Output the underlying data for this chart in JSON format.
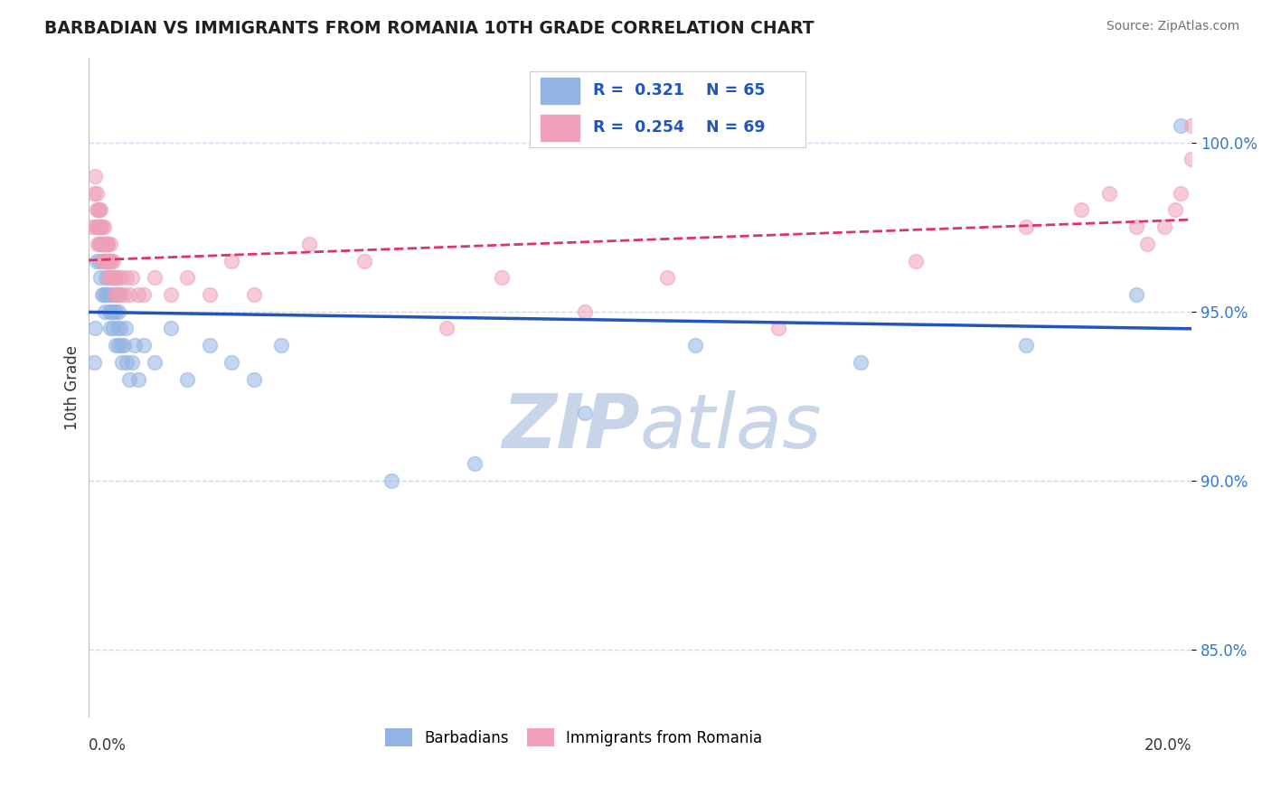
{
  "title": "BARBADIAN VS IMMIGRANTS FROM ROMANIA 10TH GRADE CORRELATION CHART",
  "source_text": "Source: ZipAtlas.com",
  "ylabel": "10th Grade",
  "xmin": 0.0,
  "xmax": 20.0,
  "ymin": 83.0,
  "ymax": 102.5,
  "blue_R": 0.321,
  "blue_N": 65,
  "pink_R": 0.254,
  "pink_N": 69,
  "blue_color": "#92b4e3",
  "pink_color": "#f0a0b8",
  "blue_line_color": "#2255bb",
  "pink_line_color": "#dd3366",
  "legend_text_color": "#2255bb",
  "title_color": "#202020",
  "source_color": "#707070",
  "grid_color": "#ccd8ec",
  "watermark_color": "#c8d4e8",
  "blue_x": [
    0.1,
    0.12,
    0.15,
    0.17,
    0.18,
    0.2,
    0.2,
    0.22,
    0.22,
    0.25,
    0.25,
    0.27,
    0.28,
    0.28,
    0.3,
    0.3,
    0.32,
    0.32,
    0.33,
    0.35,
    0.35,
    0.37,
    0.38,
    0.38,
    0.4,
    0.4,
    0.42,
    0.43,
    0.45,
    0.45,
    0.47,
    0.48,
    0.5,
    0.5,
    0.52,
    0.53,
    0.55,
    0.55,
    0.57,
    0.58,
    0.6,
    0.62,
    0.65,
    0.68,
    0.7,
    0.75,
    0.8,
    0.85,
    0.9,
    1.0,
    1.2,
    1.5,
    1.8,
    2.2,
    2.6,
    3.0,
    3.5,
    5.5,
    7.0,
    9.0,
    11.0,
    14.0,
    17.0,
    19.0,
    19.8
  ],
  "blue_y": [
    93.5,
    94.5,
    96.5,
    97.5,
    98.0,
    97.0,
    96.5,
    97.5,
    96.0,
    97.0,
    95.5,
    96.5,
    97.0,
    95.5,
    96.5,
    95.0,
    96.0,
    95.5,
    96.5,
    97.0,
    95.5,
    96.0,
    95.0,
    96.5,
    95.5,
    94.5,
    95.0,
    96.0,
    95.5,
    94.5,
    95.0,
    96.0,
    95.0,
    94.0,
    95.5,
    94.5,
    95.0,
    94.0,
    95.5,
    94.5,
    94.0,
    93.5,
    94.0,
    94.5,
    93.5,
    93.0,
    93.5,
    94.0,
    93.0,
    94.0,
    93.5,
    94.5,
    93.0,
    94.0,
    93.5,
    93.0,
    94.0,
    90.0,
    90.5,
    92.0,
    94.0,
    93.5,
    94.0,
    95.5,
    100.5
  ],
  "pink_x": [
    0.08,
    0.1,
    0.12,
    0.13,
    0.15,
    0.15,
    0.17,
    0.18,
    0.18,
    0.2,
    0.2,
    0.22,
    0.22,
    0.23,
    0.25,
    0.25,
    0.27,
    0.28,
    0.28,
    0.3,
    0.3,
    0.32,
    0.33,
    0.35,
    0.35,
    0.37,
    0.38,
    0.4,
    0.4,
    0.42,
    0.43,
    0.45,
    0.47,
    0.48,
    0.5,
    0.52,
    0.55,
    0.58,
    0.6,
    0.65,
    0.7,
    0.75,
    0.8,
    0.9,
    1.0,
    1.2,
    1.5,
    1.8,
    2.2,
    2.6,
    3.0,
    4.0,
    5.0,
    6.5,
    7.5,
    9.0,
    10.5,
    12.5,
    15.0,
    17.0,
    18.0,
    18.5,
    19.0,
    19.2,
    19.5,
    19.7,
    19.8,
    20.0,
    20.0
  ],
  "pink_y": [
    97.5,
    98.5,
    99.0,
    97.5,
    98.0,
    98.5,
    97.0,
    97.5,
    98.0,
    97.5,
    97.0,
    97.5,
    98.0,
    97.0,
    97.5,
    97.0,
    96.5,
    97.0,
    97.5,
    96.5,
    97.0,
    96.5,
    97.0,
    96.5,
    97.0,
    96.0,
    96.5,
    96.0,
    97.0,
    96.5,
    96.0,
    96.5,
    96.0,
    95.5,
    96.0,
    95.5,
    96.0,
    95.5,
    96.0,
    95.5,
    96.0,
    95.5,
    96.0,
    95.5,
    95.5,
    96.0,
    95.5,
    96.0,
    95.5,
    96.5,
    95.5,
    97.0,
    96.5,
    94.5,
    96.0,
    95.0,
    96.0,
    94.5,
    96.5,
    97.5,
    98.0,
    98.5,
    97.5,
    97.0,
    97.5,
    98.0,
    98.5,
    99.5,
    100.5
  ],
  "y_ticks": [
    85.0,
    90.0,
    95.0,
    100.0
  ],
  "y_tick_labels": [
    "85.0%",
    "90.0%",
    "95.0%",
    "100.0%"
  ]
}
